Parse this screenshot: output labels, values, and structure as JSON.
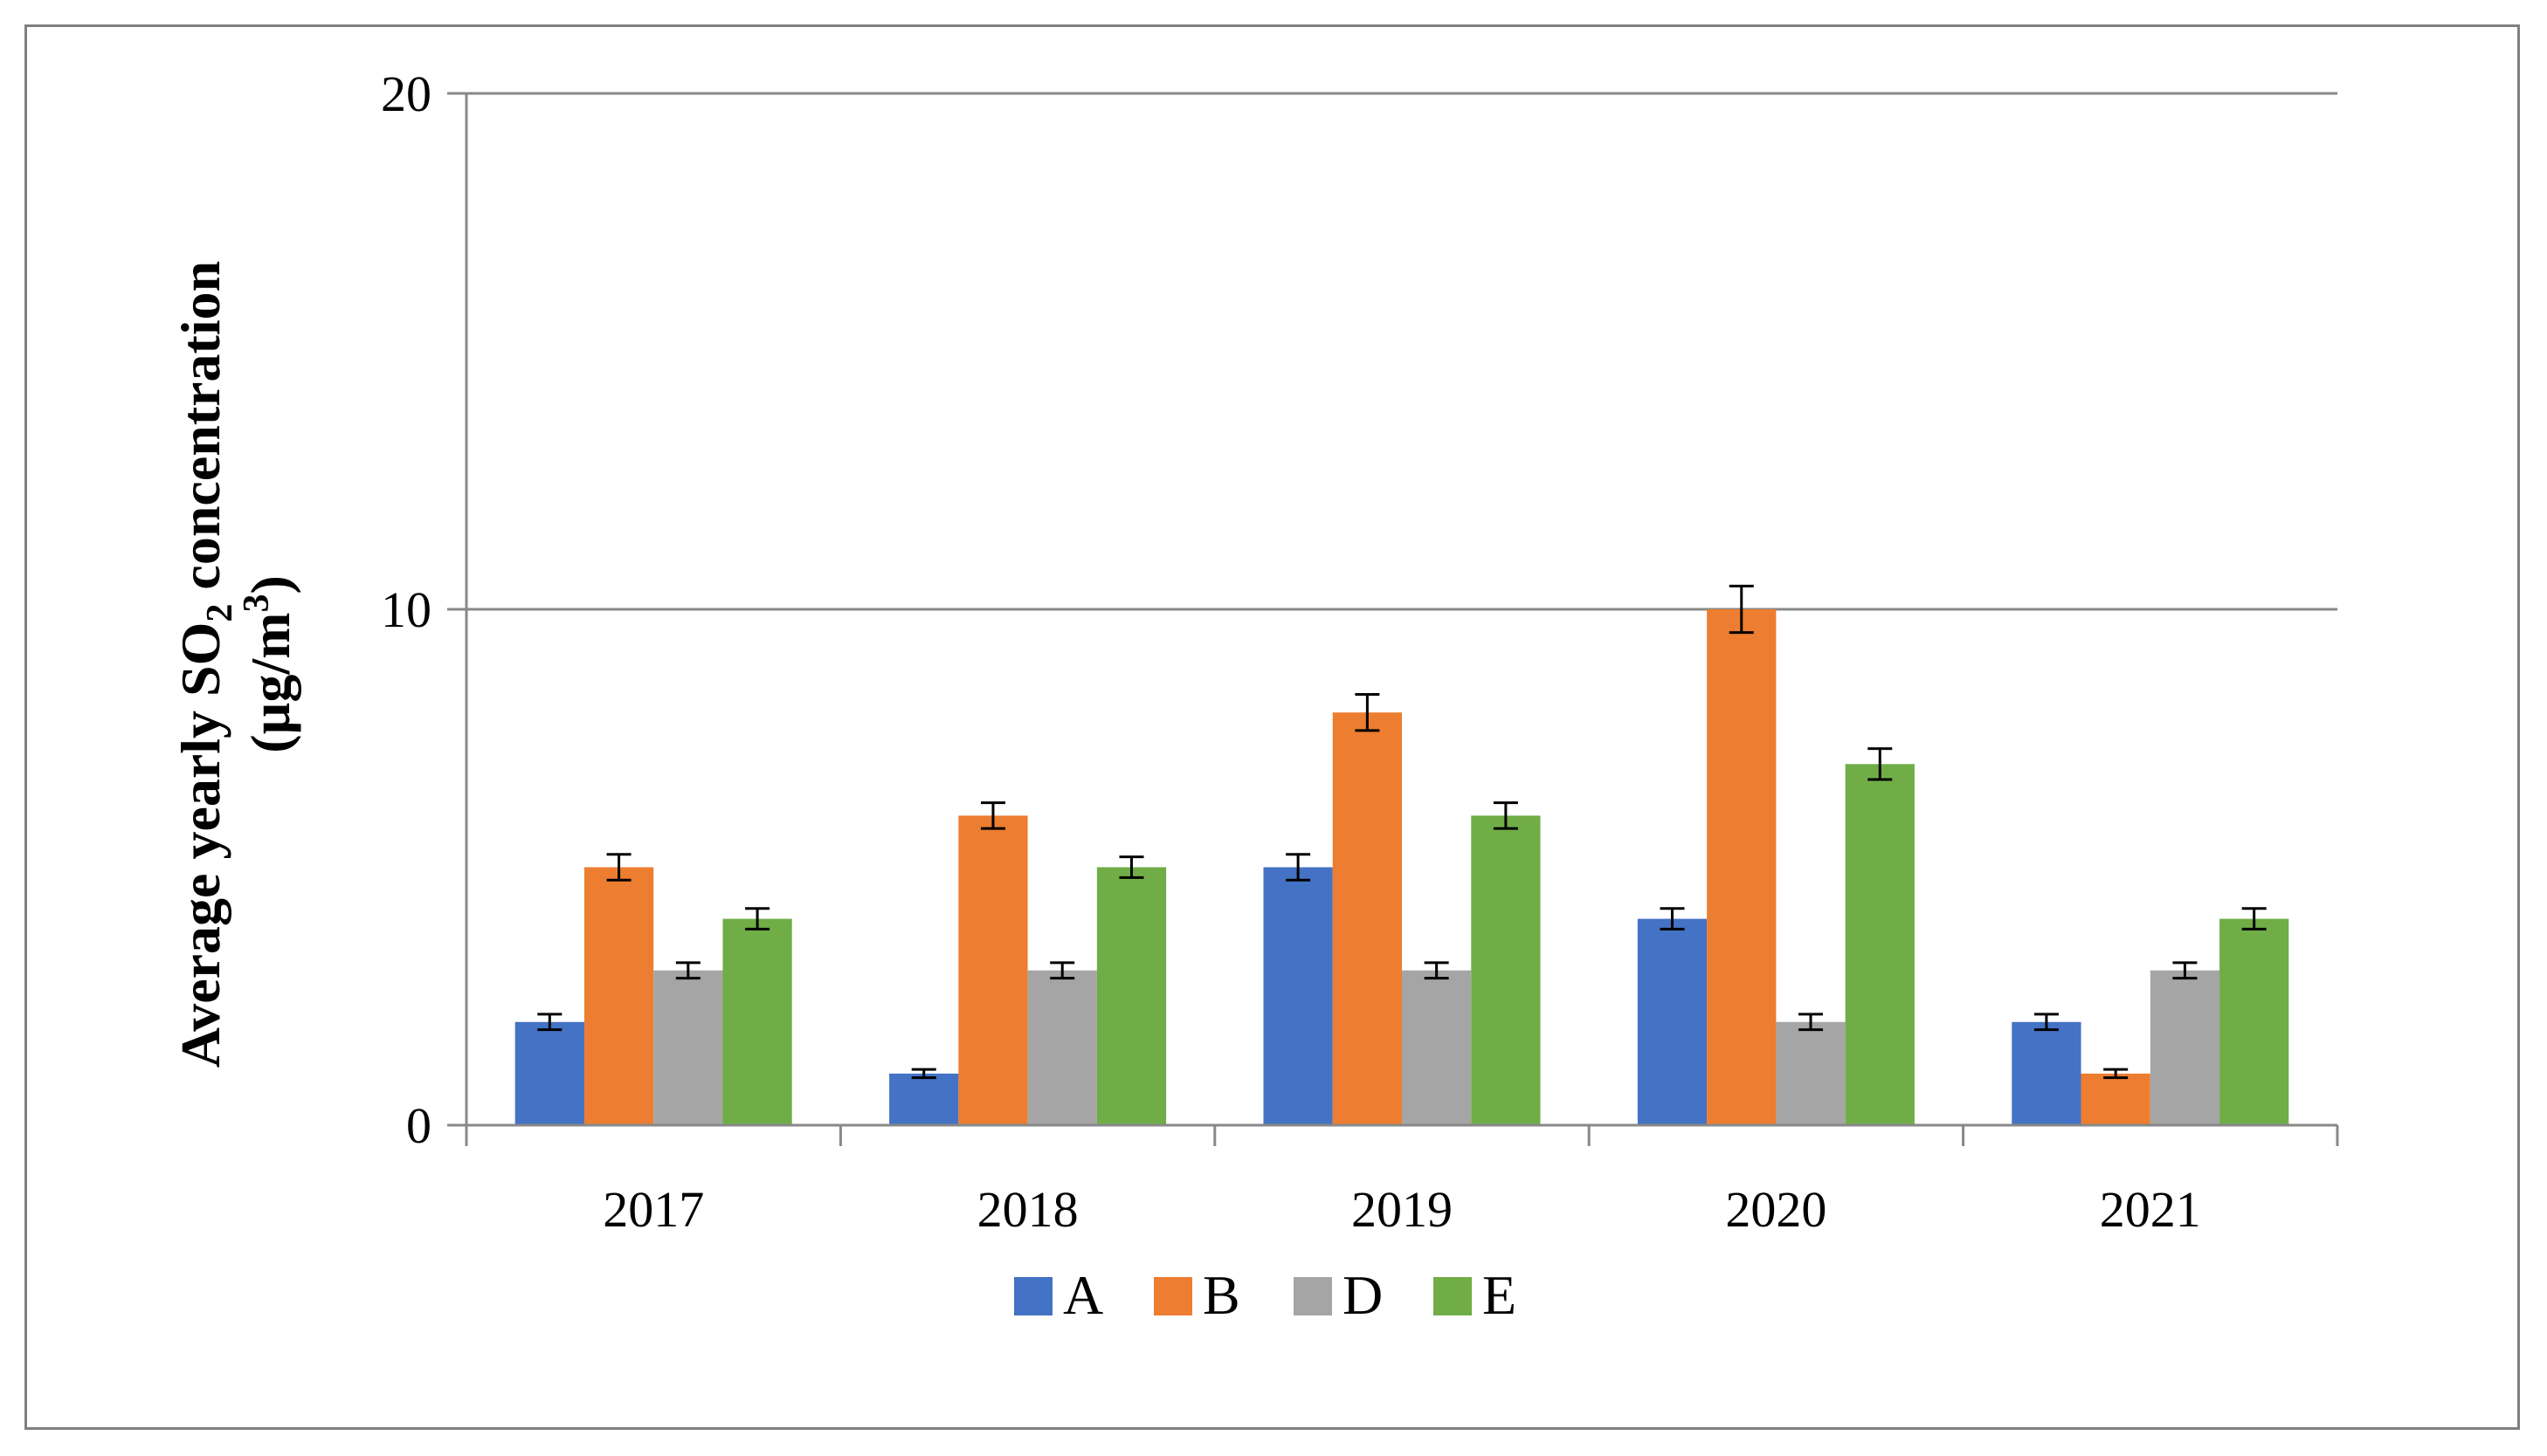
{
  "chart_data": {
    "type": "bar",
    "title": "",
    "xlabel": "",
    "ylabel": {
      "line1_prefix": "Average yearly SO",
      "line1_subscript": "2",
      "line1_suffix": " concentration",
      "line2_prefix": "(µg/m",
      "line2_superscript": "3",
      "line2_suffix": ")"
    },
    "ylim": [
      0,
      20
    ],
    "yticks": [
      0,
      10,
      20
    ],
    "grid": true,
    "legend_position": "bottom",
    "categories": [
      "2017",
      "2018",
      "2019",
      "2020",
      "2021"
    ],
    "series": [
      {
        "name": "A",
        "color": "#4472C4",
        "values": [
          2,
          1,
          5,
          4,
          2
        ],
        "errors": [
          0.15,
          0.08,
          0.25,
          0.2,
          0.15
        ]
      },
      {
        "name": "B",
        "color": "#ED7D31",
        "values": [
          5,
          6,
          8,
          10,
          1
        ],
        "errors": [
          0.25,
          0.25,
          0.35,
          0.45,
          0.08
        ]
      },
      {
        "name": "D",
        "color": "#A5A5A5",
        "values": [
          3,
          3,
          3,
          2,
          3
        ],
        "errors": [
          0.15,
          0.15,
          0.15,
          0.15,
          0.15
        ]
      },
      {
        "name": "E",
        "color": "#70AD47",
        "values": [
          4,
          5,
          6,
          7,
          4
        ],
        "errors": [
          0.2,
          0.2,
          0.25,
          0.3,
          0.2
        ]
      }
    ]
  }
}
